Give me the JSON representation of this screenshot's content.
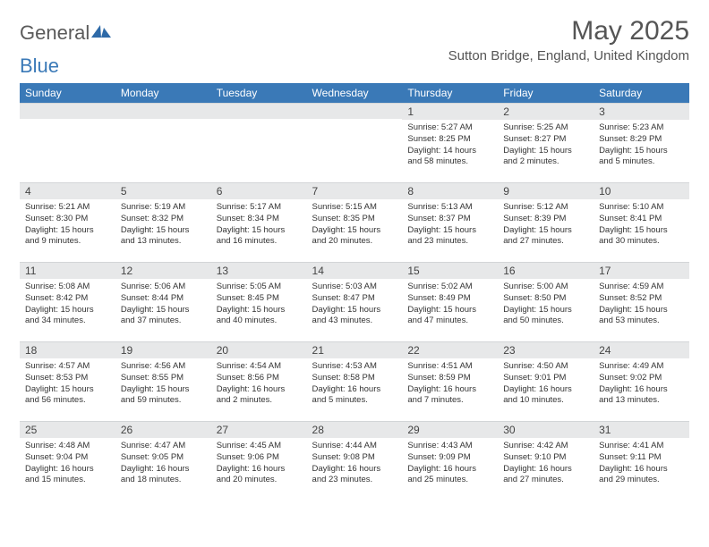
{
  "brand": {
    "part1": "General",
    "part2": "Blue"
  },
  "title": "May 2025",
  "location": "Sutton Bridge, England, United Kingdom",
  "colors": {
    "header_bg": "#3a79b7",
    "header_text": "#ffffff",
    "daybar_bg": "#e7e8e9",
    "text": "#333333",
    "title_text": "#555555"
  },
  "columns": [
    "Sunday",
    "Monday",
    "Tuesday",
    "Wednesday",
    "Thursday",
    "Friday",
    "Saturday"
  ],
  "weeks": [
    [
      {
        "n": "",
        "lines": []
      },
      {
        "n": "",
        "lines": []
      },
      {
        "n": "",
        "lines": []
      },
      {
        "n": "",
        "lines": []
      },
      {
        "n": "1",
        "lines": [
          "Sunrise: 5:27 AM",
          "Sunset: 8:25 PM",
          "Daylight: 14 hours",
          "and 58 minutes."
        ]
      },
      {
        "n": "2",
        "lines": [
          "Sunrise: 5:25 AM",
          "Sunset: 8:27 PM",
          "Daylight: 15 hours",
          "and 2 minutes."
        ]
      },
      {
        "n": "3",
        "lines": [
          "Sunrise: 5:23 AM",
          "Sunset: 8:29 PM",
          "Daylight: 15 hours",
          "and 5 minutes."
        ]
      }
    ],
    [
      {
        "n": "4",
        "lines": [
          "Sunrise: 5:21 AM",
          "Sunset: 8:30 PM",
          "Daylight: 15 hours",
          "and 9 minutes."
        ]
      },
      {
        "n": "5",
        "lines": [
          "Sunrise: 5:19 AM",
          "Sunset: 8:32 PM",
          "Daylight: 15 hours",
          "and 13 minutes."
        ]
      },
      {
        "n": "6",
        "lines": [
          "Sunrise: 5:17 AM",
          "Sunset: 8:34 PM",
          "Daylight: 15 hours",
          "and 16 minutes."
        ]
      },
      {
        "n": "7",
        "lines": [
          "Sunrise: 5:15 AM",
          "Sunset: 8:35 PM",
          "Daylight: 15 hours",
          "and 20 minutes."
        ]
      },
      {
        "n": "8",
        "lines": [
          "Sunrise: 5:13 AM",
          "Sunset: 8:37 PM",
          "Daylight: 15 hours",
          "and 23 minutes."
        ]
      },
      {
        "n": "9",
        "lines": [
          "Sunrise: 5:12 AM",
          "Sunset: 8:39 PM",
          "Daylight: 15 hours",
          "and 27 minutes."
        ]
      },
      {
        "n": "10",
        "lines": [
          "Sunrise: 5:10 AM",
          "Sunset: 8:41 PM",
          "Daylight: 15 hours",
          "and 30 minutes."
        ]
      }
    ],
    [
      {
        "n": "11",
        "lines": [
          "Sunrise: 5:08 AM",
          "Sunset: 8:42 PM",
          "Daylight: 15 hours",
          "and 34 minutes."
        ]
      },
      {
        "n": "12",
        "lines": [
          "Sunrise: 5:06 AM",
          "Sunset: 8:44 PM",
          "Daylight: 15 hours",
          "and 37 minutes."
        ]
      },
      {
        "n": "13",
        "lines": [
          "Sunrise: 5:05 AM",
          "Sunset: 8:45 PM",
          "Daylight: 15 hours",
          "and 40 minutes."
        ]
      },
      {
        "n": "14",
        "lines": [
          "Sunrise: 5:03 AM",
          "Sunset: 8:47 PM",
          "Daylight: 15 hours",
          "and 43 minutes."
        ]
      },
      {
        "n": "15",
        "lines": [
          "Sunrise: 5:02 AM",
          "Sunset: 8:49 PM",
          "Daylight: 15 hours",
          "and 47 minutes."
        ]
      },
      {
        "n": "16",
        "lines": [
          "Sunrise: 5:00 AM",
          "Sunset: 8:50 PM",
          "Daylight: 15 hours",
          "and 50 minutes."
        ]
      },
      {
        "n": "17",
        "lines": [
          "Sunrise: 4:59 AM",
          "Sunset: 8:52 PM",
          "Daylight: 15 hours",
          "and 53 minutes."
        ]
      }
    ],
    [
      {
        "n": "18",
        "lines": [
          "Sunrise: 4:57 AM",
          "Sunset: 8:53 PM",
          "Daylight: 15 hours",
          "and 56 minutes."
        ]
      },
      {
        "n": "19",
        "lines": [
          "Sunrise: 4:56 AM",
          "Sunset: 8:55 PM",
          "Daylight: 15 hours",
          "and 59 minutes."
        ]
      },
      {
        "n": "20",
        "lines": [
          "Sunrise: 4:54 AM",
          "Sunset: 8:56 PM",
          "Daylight: 16 hours",
          "and 2 minutes."
        ]
      },
      {
        "n": "21",
        "lines": [
          "Sunrise: 4:53 AM",
          "Sunset: 8:58 PM",
          "Daylight: 16 hours",
          "and 5 minutes."
        ]
      },
      {
        "n": "22",
        "lines": [
          "Sunrise: 4:51 AM",
          "Sunset: 8:59 PM",
          "Daylight: 16 hours",
          "and 7 minutes."
        ]
      },
      {
        "n": "23",
        "lines": [
          "Sunrise: 4:50 AM",
          "Sunset: 9:01 PM",
          "Daylight: 16 hours",
          "and 10 minutes."
        ]
      },
      {
        "n": "24",
        "lines": [
          "Sunrise: 4:49 AM",
          "Sunset: 9:02 PM",
          "Daylight: 16 hours",
          "and 13 minutes."
        ]
      }
    ],
    [
      {
        "n": "25",
        "lines": [
          "Sunrise: 4:48 AM",
          "Sunset: 9:04 PM",
          "Daylight: 16 hours",
          "and 15 minutes."
        ]
      },
      {
        "n": "26",
        "lines": [
          "Sunrise: 4:47 AM",
          "Sunset: 9:05 PM",
          "Daylight: 16 hours",
          "and 18 minutes."
        ]
      },
      {
        "n": "27",
        "lines": [
          "Sunrise: 4:45 AM",
          "Sunset: 9:06 PM",
          "Daylight: 16 hours",
          "and 20 minutes."
        ]
      },
      {
        "n": "28",
        "lines": [
          "Sunrise: 4:44 AM",
          "Sunset: 9:08 PM",
          "Daylight: 16 hours",
          "and 23 minutes."
        ]
      },
      {
        "n": "29",
        "lines": [
          "Sunrise: 4:43 AM",
          "Sunset: 9:09 PM",
          "Daylight: 16 hours",
          "and 25 minutes."
        ]
      },
      {
        "n": "30",
        "lines": [
          "Sunrise: 4:42 AM",
          "Sunset: 9:10 PM",
          "Daylight: 16 hours",
          "and 27 minutes."
        ]
      },
      {
        "n": "31",
        "lines": [
          "Sunrise: 4:41 AM",
          "Sunset: 9:11 PM",
          "Daylight: 16 hours",
          "and 29 minutes."
        ]
      }
    ]
  ]
}
